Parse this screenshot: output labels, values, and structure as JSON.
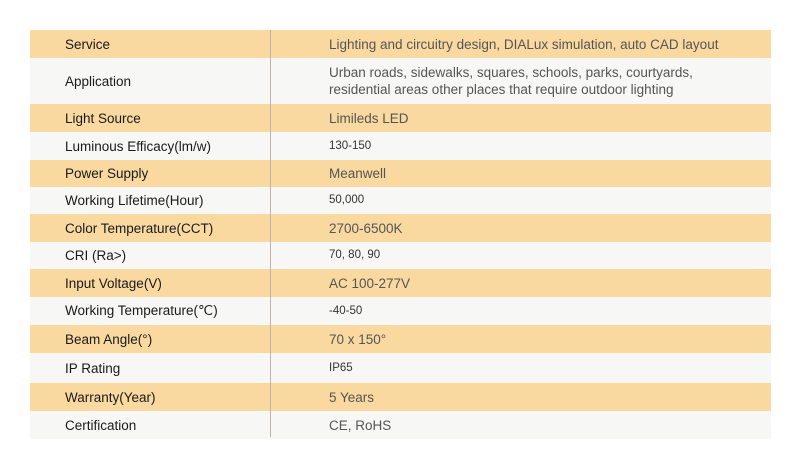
{
  "rows": [
    {
      "label": "Service",
      "value": "Lighting and circuitry design, DIALux simulation, auto CAD layout",
      "small": false
    },
    {
      "label": "Application",
      "value": "Urban roads, sidewalks, squares, schools, parks, courtyards,",
      "value2": "residential areas other places that require outdoor lighting",
      "small": false
    },
    {
      "label": "Light Source",
      "value": "Limileds LED",
      "small": false
    },
    {
      "label": "Luminous Efficacy(lm/w)",
      "value": "130-150",
      "small": true
    },
    {
      "label": "Power Supply",
      "value": "Meanwell",
      "small": false
    },
    {
      "label": "Working Lifetime(Hour)",
      "value": "50,000",
      "small": true
    },
    {
      "label": "Color Temperature(CCT)",
      "value": "2700-6500K",
      "small": false
    },
    {
      "label": "CRI (Ra>)",
      "value": "70, 80, 90",
      "small": true
    },
    {
      "label": "Input Voltage(V)",
      "value": "AC 100-277V",
      "small": false
    },
    {
      "label": "Working Temperature(℃)",
      "value": "-40-50",
      "small": true
    },
    {
      "label": "Beam Angle(°)",
      "value": "70 x 150°",
      "small": false
    },
    {
      "label": "IP Rating",
      "value": "IP65",
      "small": true
    },
    {
      "label": "Warranty(Year)",
      "value": "5 Years",
      "small": false
    },
    {
      "label": "Certification",
      "value": "CE, RoHS",
      "small": false
    }
  ],
  "colors": {
    "odd_row": "#f9d9a0",
    "even_row": "#f7f7f5",
    "divider": "#bdb6a8"
  }
}
